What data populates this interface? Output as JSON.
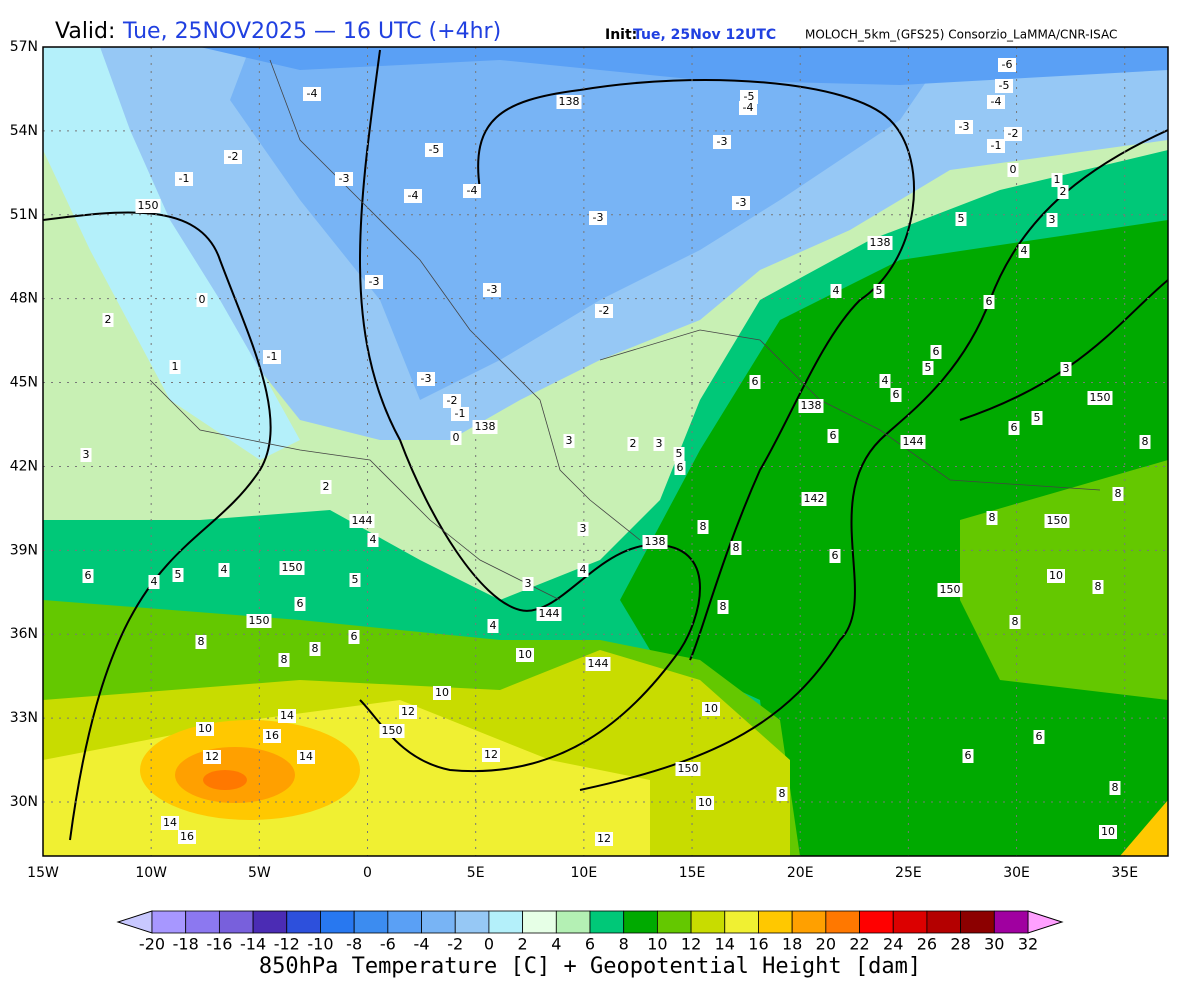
{
  "header": {
    "valid_label": "Valid:",
    "valid": "Tue, 25NOV2025 — 16 UTC (+4hr)",
    "init_label": "Init:",
    "init": "Tue, 25Nov 12UTC",
    "source": "MOLOCH_5km_(GFS25) Consorzio_LaMMA/CNR-ISAC"
  },
  "map": {
    "lat_ticks": [
      {
        "value": 57,
        "label": "57N"
      },
      {
        "value": 54,
        "label": "54N"
      },
      {
        "value": 51,
        "label": "51N"
      },
      {
        "value": 48,
        "label": "48N"
      },
      {
        "value": 45,
        "label": "45N"
      },
      {
        "value": 42,
        "label": "42N"
      },
      {
        "value": 39,
        "label": "39N"
      },
      {
        "value": 36,
        "label": "36N"
      },
      {
        "value": 33,
        "label": "33N"
      },
      {
        "value": 30,
        "label": "30N"
      }
    ],
    "lon_ticks": [
      {
        "value": -15,
        "label": "15W"
      },
      {
        "value": -10,
        "label": "10W"
      },
      {
        "value": -5,
        "label": "5W"
      },
      0,
      {
        "value": 5,
        "label": "5E"
      },
      {
        "value": 10,
        "label": "10E"
      },
      {
        "value": 15,
        "label": "15E"
      },
      {
        "value": 20,
        "label": "20E"
      },
      {
        "value": 25,
        "label": "25E"
      },
      {
        "value": 30,
        "label": "30E"
      },
      {
        "value": 35,
        "label": "35E"
      }
    ],
    "contour_labels": [
      "-6",
      "-5",
      "-4",
      "-3",
      "-2",
      "-1",
      "0",
      "1",
      "2",
      "3",
      "4",
      "5",
      "138",
      "-5",
      "-4",
      "-4",
      "-3",
      "-2",
      "-1",
      "150",
      "-3",
      "-5",
      "-4",
      "-4",
      "-3",
      "-3",
      "138",
      "-3",
      "-3",
      "-2",
      "0",
      "2",
      "-1",
      "1",
      "-3",
      "-2",
      "-1",
      "0",
      "138",
      "3",
      "2",
      "144",
      "4",
      "150",
      "6",
      "4",
      "5",
      "4",
      "5",
      "150",
      "6",
      "6",
      "8",
      "8",
      "8",
      "10",
      "144",
      "10",
      "12",
      "150",
      "14",
      "16",
      "14",
      "10",
      "12",
      "12",
      "150",
      "10",
      "10",
      "8",
      "14",
      "16",
      "12",
      "138",
      "3",
      "4",
      "3",
      "144",
      "4",
      "6",
      "138",
      "6",
      "144",
      "142",
      "6",
      "8",
      "8",
      "8",
      "150",
      "8",
      "10",
      "8",
      "150",
      "8",
      "8",
      "8",
      "6",
      "5",
      "150",
      "3",
      "6",
      "5",
      "4",
      "6",
      "5",
      "4",
      "6",
      "6",
      "6",
      "8",
      "10",
      "5",
      "6",
      "2",
      "3",
      "3"
    ]
  },
  "colorbar": {
    "title": "850hPa Temperature [C] + Geopotential Height [dam]",
    "ticks": [
      -20,
      -18,
      -16,
      -14,
      -12,
      -10,
      -8,
      -6,
      -4,
      -2,
      0,
      2,
      4,
      6,
      8,
      10,
      12,
      14,
      16,
      18,
      20,
      22,
      24,
      26,
      28,
      30,
      32
    ],
    "colors": [
      "#a797ff",
      "#8c78f0",
      "#7860dc",
      "#4b2cb4",
      "#2d50dc",
      "#2878f0",
      "#3c8cf0",
      "#5aa0f5",
      "#78b4f5",
      "#96c8f5",
      "#b4f0fa",
      "#e6ffe6",
      "#b4f0b4",
      "#00c878",
      "#00aa00",
      "#64c800",
      "#c8dc00",
      "#f0f032",
      "#ffc800",
      "#ffa000",
      "#ff7800",
      "#ff0000",
      "#dc0000",
      "#b40000",
      "#8c0000",
      "#a000a0",
      "#ff00ff"
    ],
    "under_color": "#c8c8ff",
    "over_color": "#ffa0ff"
  }
}
